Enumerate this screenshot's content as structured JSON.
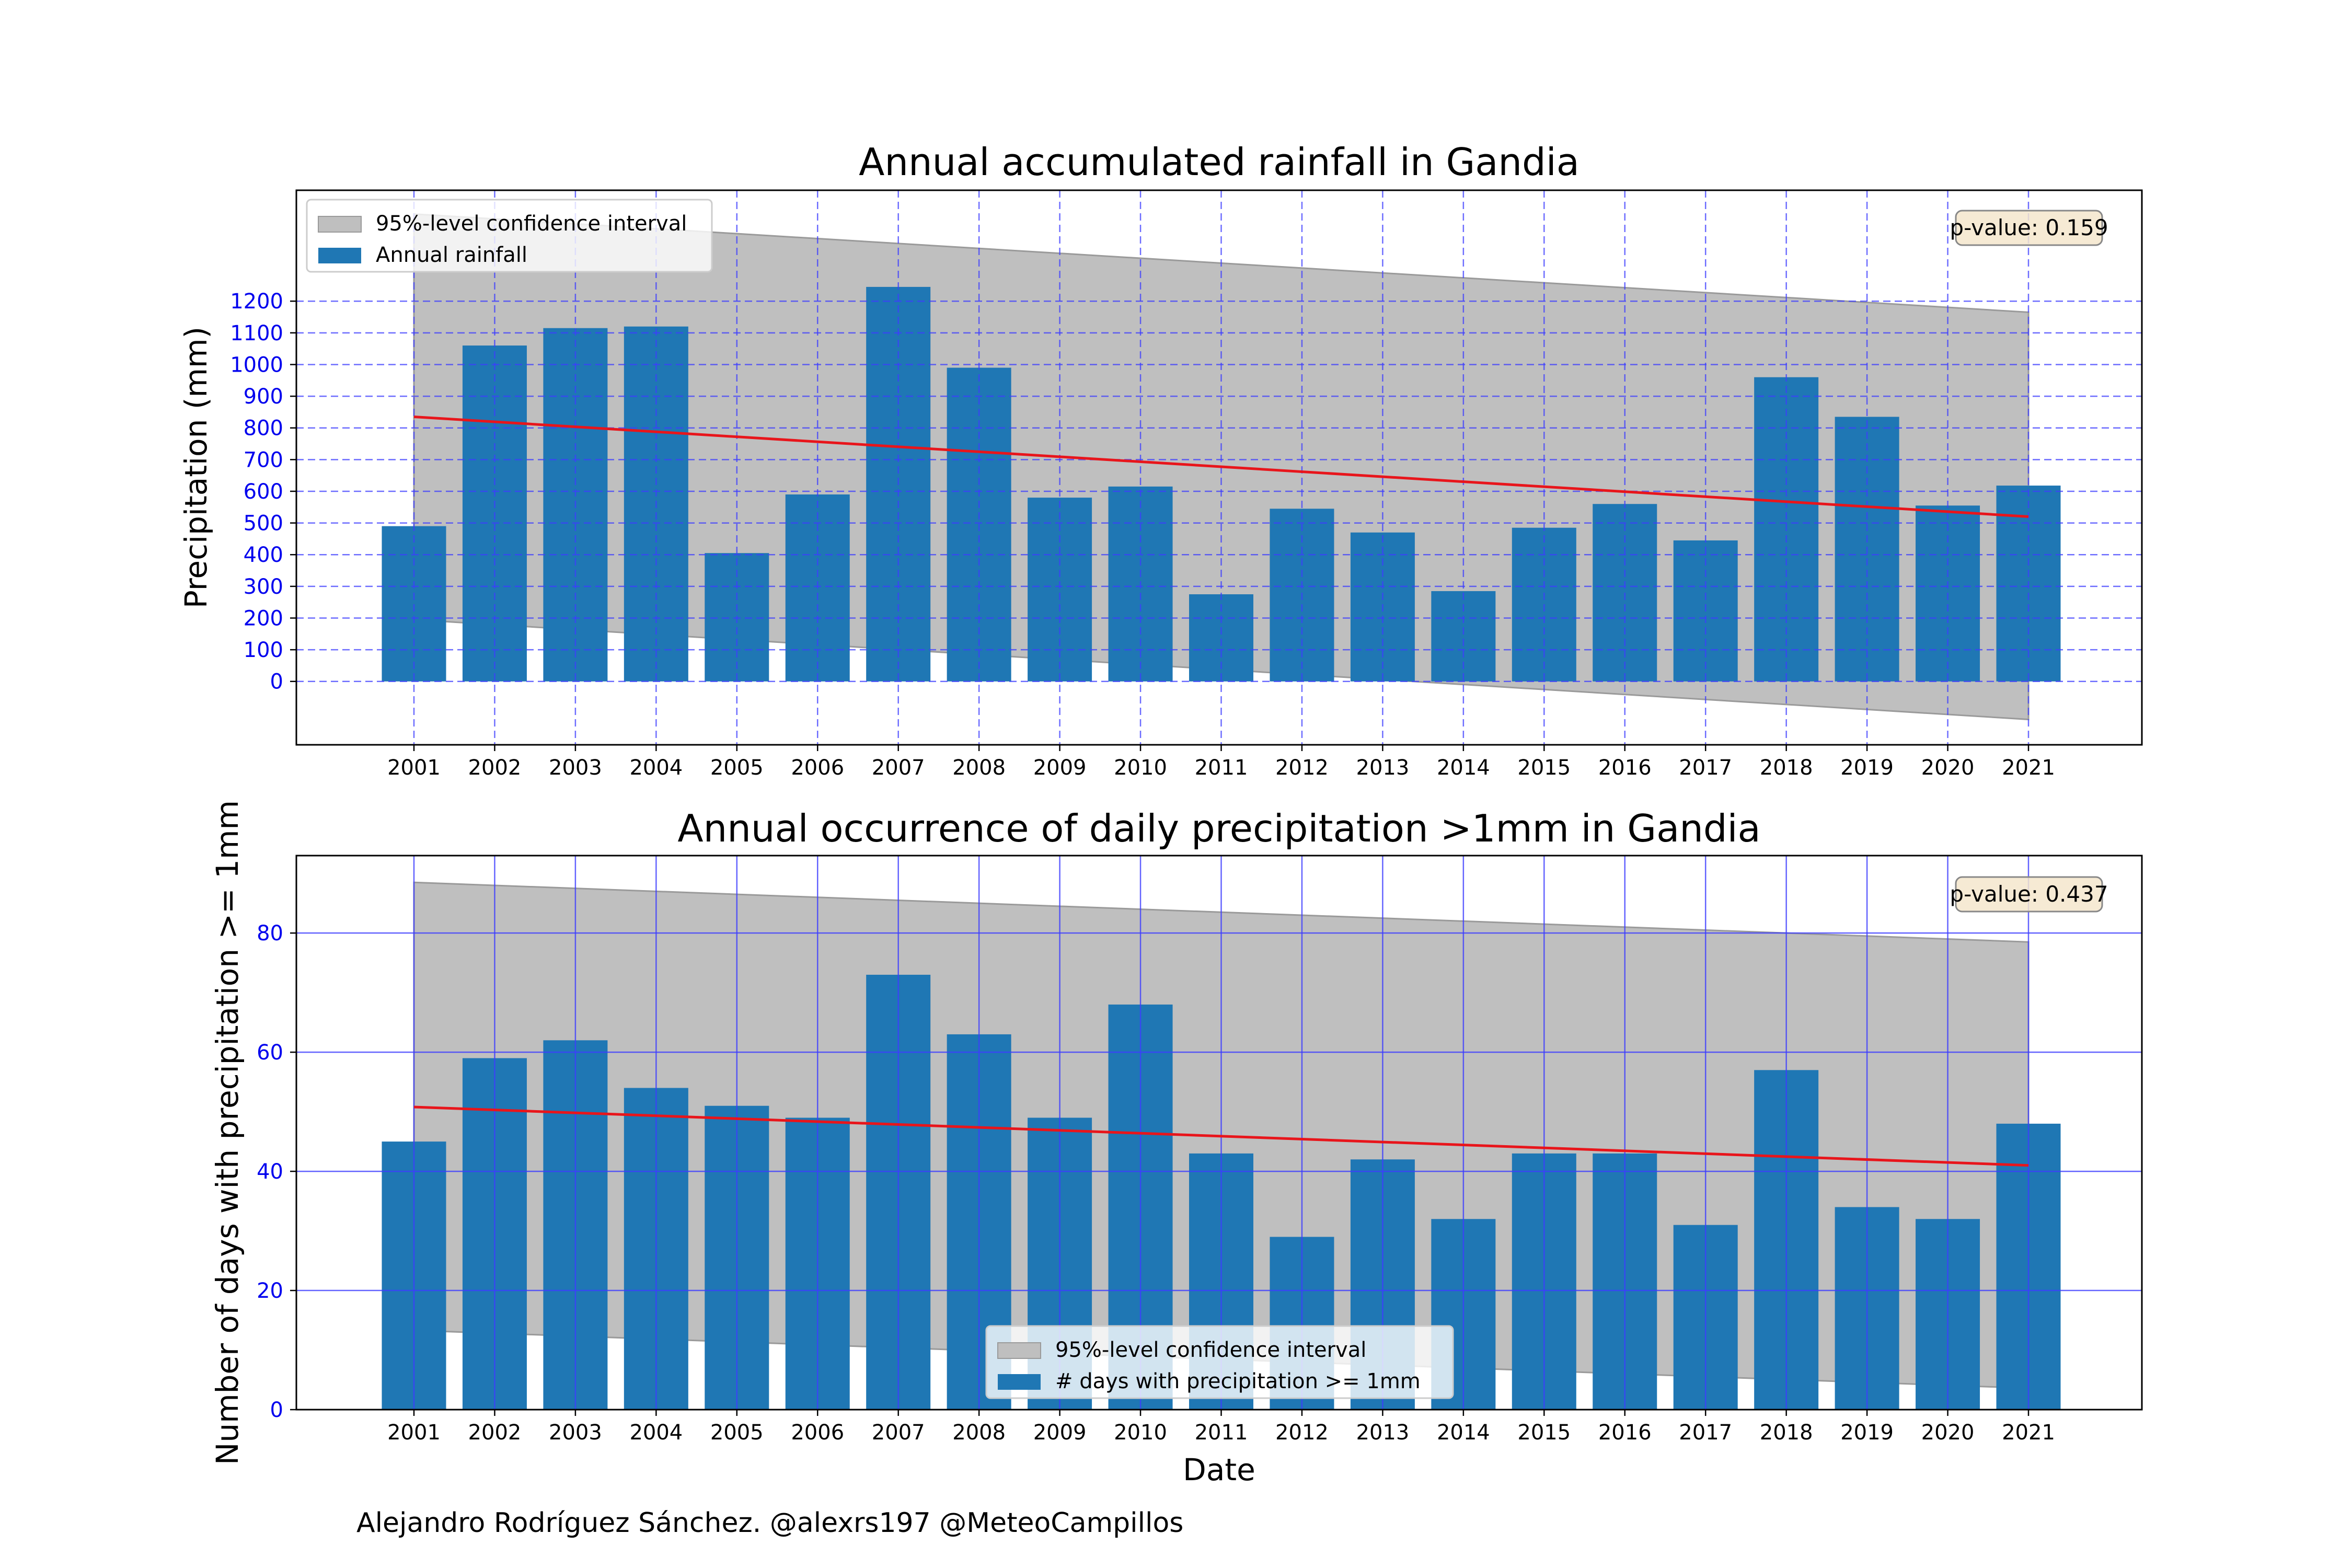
{
  "credit": "Alejandro Rodríguez Sánchez. @alexrs197 @MeteoCampillos",
  "colors": {
    "bar": "#1f77b4",
    "trend": "#e8151b",
    "confidence_band": "#bfbfbf",
    "grid": "#3d3dff",
    "tick_label": "#0000ee",
    "pvalue_box_fill": "#f5e6cc"
  },
  "chart_data": [
    {
      "type": "bar",
      "title": "Annual accumulated rainfall in Gandia",
      "xlabel": "",
      "ylabel": "Precipitation (mm)",
      "categories": [
        "2001",
        "2002",
        "2003",
        "2004",
        "2005",
        "2006",
        "2007",
        "2008",
        "2009",
        "2010",
        "2011",
        "2012",
        "2013",
        "2014",
        "2015",
        "2016",
        "2017",
        "2018",
        "2019",
        "2020",
        "2021"
      ],
      "series": [
        {
          "name": "Annual rainfall",
          "values": [
            490,
            1060,
            1115,
            1120,
            405,
            590,
            1245,
            990,
            580,
            615,
            275,
            545,
            470,
            285,
            485,
            560,
            445,
            960,
            835,
            555,
            618
          ]
        }
      ],
      "trend_line": {
        "start": 835,
        "end": 520
      },
      "confidence_interval": {
        "name": "95%-level confidence interval",
        "upper": {
          "start": 1475,
          "end": 1165
        },
        "lower": {
          "start": 195,
          "end": -120
        }
      },
      "p_value_label": "p-value: 0.159",
      "ylim": [
        -200,
        1550
      ],
      "yticks": [
        0,
        100,
        200,
        300,
        400,
        500,
        600,
        700,
        800,
        900,
        1000,
        1100,
        1200
      ],
      "grid": "dashed",
      "legend": {
        "position": "top-left",
        "entries": [
          "95%-level confidence interval",
          "Annual rainfall"
        ]
      }
    },
    {
      "type": "bar",
      "title": "Annual occurrence of daily precipitation >1mm in Gandia",
      "xlabel": "Date",
      "ylabel": "Number of days with precipitation >= 1mm",
      "categories": [
        "2001",
        "2002",
        "2003",
        "2004",
        "2005",
        "2006",
        "2007",
        "2008",
        "2009",
        "2010",
        "2011",
        "2012",
        "2013",
        "2014",
        "2015",
        "2016",
        "2017",
        "2018",
        "2019",
        "2020",
        "2021"
      ],
      "series": [
        {
          "name": "# days with precipitation >= 1mm",
          "values": [
            45,
            59,
            62,
            54,
            51,
            49,
            73,
            63,
            49,
            68,
            43,
            29,
            42,
            32,
            43,
            43,
            31,
            57,
            34,
            32,
            48
          ]
        }
      ],
      "trend_line": {
        "start": 50.8,
        "end": 41
      },
      "confidence_interval": {
        "name": "95%-level confidence interval",
        "upper": {
          "start": 88.5,
          "end": 78.5
        },
        "lower": {
          "start": 13.3,
          "end": 3.6
        }
      },
      "p_value_label": "p-value: 0.437",
      "ylim": [
        0,
        93
      ],
      "yticks": [
        0,
        20,
        40,
        60,
        80
      ],
      "grid": "solid",
      "legend": {
        "position": "bottom-center",
        "entries": [
          "95%-level confidence interval",
          "# days with precipitation >= 1mm"
        ]
      }
    }
  ]
}
